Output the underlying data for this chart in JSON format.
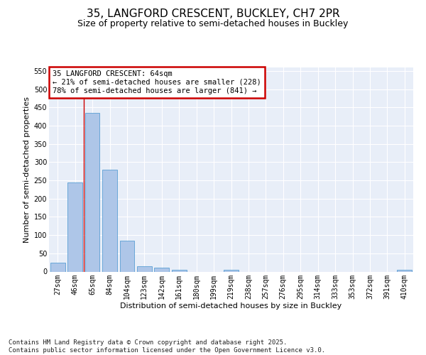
{
  "title_line1": "35, LANGFORD CRESCENT, BUCKLEY, CH7 2PR",
  "title_line2": "Size of property relative to semi-detached houses in Buckley",
  "xlabel": "Distribution of semi-detached houses by size in Buckley",
  "ylabel": "Number of semi-detached properties",
  "categories": [
    "27sqm",
    "46sqm",
    "65sqm",
    "84sqm",
    "104sqm",
    "123sqm",
    "142sqm",
    "161sqm",
    "180sqm",
    "199sqm",
    "219sqm",
    "238sqm",
    "257sqm",
    "276sqm",
    "295sqm",
    "314sqm",
    "333sqm",
    "353sqm",
    "372sqm",
    "391sqm",
    "410sqm"
  ],
  "values": [
    25,
    245,
    435,
    280,
    85,
    15,
    10,
    5,
    0,
    0,
    5,
    0,
    0,
    0,
    0,
    0,
    0,
    0,
    0,
    0,
    5
  ],
  "bar_color": "#aec6e8",
  "bar_edge_color": "#5a9fd4",
  "vline_x_index": 2,
  "vline_color": "#cc0000",
  "annotation_text": "35 LANGFORD CRESCENT: 64sqm\n← 21% of semi-detached houses are smaller (228)\n78% of semi-detached houses are larger (841) →",
  "annotation_box_color": "#cc0000",
  "ylim": [
    0,
    560
  ],
  "yticks": [
    0,
    50,
    100,
    150,
    200,
    250,
    300,
    350,
    400,
    450,
    500,
    550
  ],
  "background_color": "#e8eef8",
  "grid_color": "#ffffff",
  "footer_text": "Contains HM Land Registry data © Crown copyright and database right 2025.\nContains public sector information licensed under the Open Government Licence v3.0.",
  "title_fontsize": 11,
  "subtitle_fontsize": 9,
  "axis_label_fontsize": 8,
  "tick_fontsize": 7,
  "annotation_fontsize": 7.5
}
